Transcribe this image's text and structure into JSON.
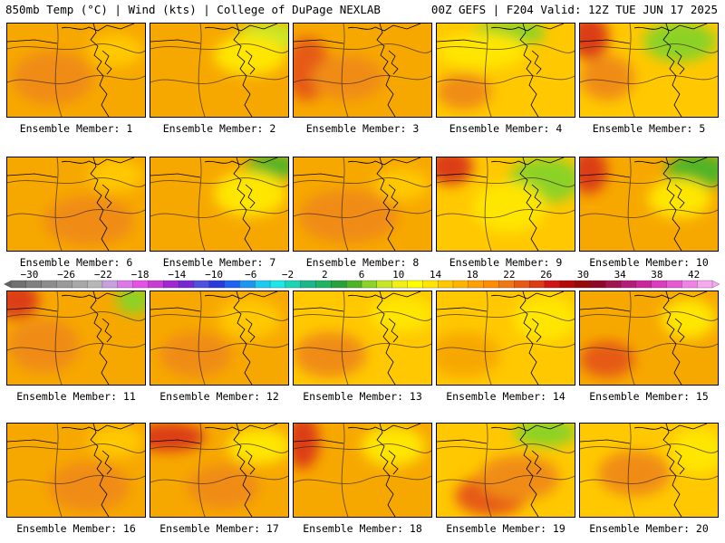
{
  "header": {
    "left": "850mb Temp (°C) | Wind (kts) | College of DuPage NEXLAB",
    "right": "00Z GEFS | F204 Valid: 12Z TUE JUN 17 2025"
  },
  "members": [
    {
      "label": "Ensemble Member: 1"
    },
    {
      "label": "Ensemble Member: 2"
    },
    {
      "label": "Ensemble Member: 3"
    },
    {
      "label": "Ensemble Member: 4"
    },
    {
      "label": "Ensemble Member: 5"
    },
    {
      "label": "Ensemble Member: 6"
    },
    {
      "label": "Ensemble Member: 7"
    },
    {
      "label": "Ensemble Member: 8"
    },
    {
      "label": "Ensemble Member: 9"
    },
    {
      "label": "Ensemble Member: 10"
    },
    {
      "label": "Ensemble Member: 11"
    },
    {
      "label": "Ensemble Member: 12"
    },
    {
      "label": "Ensemble Member: 13"
    },
    {
      "label": "Ensemble Member: 14"
    },
    {
      "label": "Ensemble Member: 15"
    },
    {
      "label": "Ensemble Member: 16"
    },
    {
      "label": "Ensemble Member: 17"
    },
    {
      "label": "Ensemble Member: 18"
    },
    {
      "label": "Ensemble Member: 19"
    },
    {
      "label": "Ensemble Member: 20"
    }
  ],
  "colorbar": {
    "ticks": [
      "−30",
      "−26",
      "−22",
      "−18",
      "−14",
      "−10",
      "−6",
      "−2",
      "2",
      "6",
      "10",
      "14",
      "18",
      "22",
      "26",
      "30",
      "34",
      "38",
      "42"
    ],
    "colors": [
      "#707070",
      "#808080",
      "#8c8c8c",
      "#9a9a9a",
      "#a8a8a8",
      "#b6b6b6",
      "#c8a0e0",
      "#dc78e8",
      "#e652e6",
      "#c83cd2",
      "#a028d2",
      "#7828d2",
      "#5050dc",
      "#283cdc",
      "#1e64f0",
      "#1e96f0",
      "#1ec8f0",
      "#1ee6e6",
      "#1ed2b4",
      "#1eb48c",
      "#1eb464",
      "#28a03c",
      "#50b428",
      "#8cd228",
      "#c8e628",
      "#f0f014",
      "#ffff00",
      "#ffe600",
      "#ffc800",
      "#ffb400",
      "#ffa000",
      "#ff8c00",
      "#f07814",
      "#e65a14",
      "#dc3c14",
      "#d21414",
      "#b40a0a",
      "#960a0a",
      "#8c0a28",
      "#a01450",
      "#b41e78",
      "#c8289b",
      "#dc3cbe",
      "#e65ad2",
      "#f082e6",
      "#f5aaf0"
    ],
    "colors_note": "",
    "min": -32,
    "max": 44,
    "step": 2
  }
}
